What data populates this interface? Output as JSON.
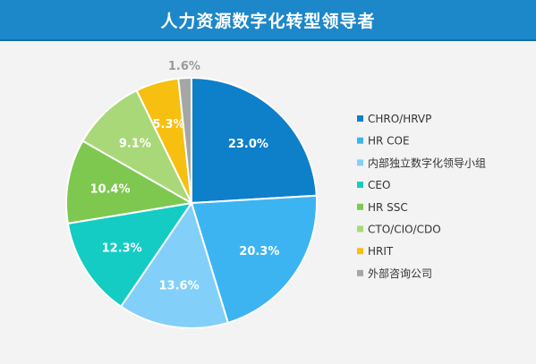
{
  "title": "人力资源数字化转型领导者",
  "chart_data": {
    "type": "pie",
    "title": "人力资源数字化转型领导者",
    "slices": [
      {
        "name": "CHRO/HRVP",
        "value": 23.0,
        "label": "23.0%",
        "color": "#0e7fc9"
      },
      {
        "name": "HR COE",
        "value": 20.3,
        "label": "20.3%",
        "color": "#3db4f2"
      },
      {
        "name": "内部独立数字化领导小组",
        "value": 13.6,
        "label": "13.6%",
        "color": "#82cffa"
      },
      {
        "name": "CEO",
        "value": 12.3,
        "label": "12.3%",
        "color": "#14ccc4"
      },
      {
        "name": "HR SSC",
        "value": 10.4,
        "label": "10.4%",
        "color": "#7ec850"
      },
      {
        "name": "CTO/CIO/CDO",
        "value": 9.1,
        "label": "9.1%",
        "color": "#a9d879"
      },
      {
        "name": "HRIT",
        "value": 5.3,
        "label": "5.3%",
        "color": "#f7bf10"
      },
      {
        "name": "外部咨询公司",
        "value": 1.6,
        "label": "1.6%",
        "color": "#a6a6a6"
      }
    ],
    "legend_position": "right"
  }
}
